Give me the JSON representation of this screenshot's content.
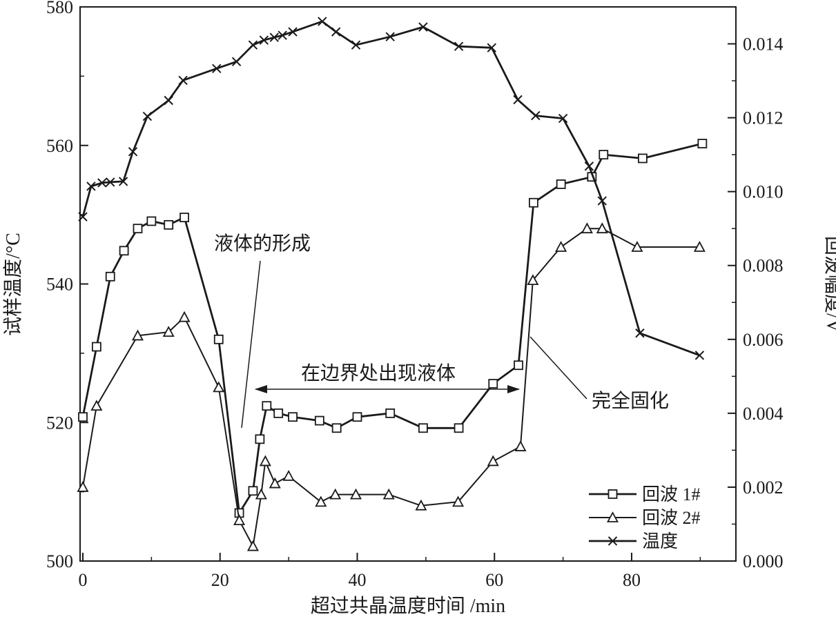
{
  "chart_data": {
    "type": "line",
    "xlabel": "超过共晶温度时间 /min",
    "ylabel_left": "试样温度/°C",
    "ylabel_right": "回波幅度/V",
    "xlim": [
      0,
      94
    ],
    "ylim_left": [
      500,
      580
    ],
    "ylim_right": [
      0,
      0.015
    ],
    "xticks": [
      "0",
      "20",
      "40",
      "60",
      "80"
    ],
    "yticks_left": [
      "500",
      "520",
      "540",
      "560",
      "580"
    ],
    "yticks_right": [
      "0.000",
      "0.002",
      "0.004",
      "0.006",
      "0.008",
      "0.010",
      "0.012",
      "0.014"
    ],
    "grid": false,
    "legend_position": "bottom-right",
    "series": [
      {
        "name": "回波 1#",
        "axis": "right",
        "marker": "square",
        "x": [
          0,
          2,
          4,
          6,
          8,
          10,
          12.5,
          14.8,
          19.8,
          22.8,
          24.8,
          25.8,
          26.8,
          28.5,
          30.6,
          34.5,
          37,
          40,
          44.8,
          49.6,
          54.8,
          59.8,
          63.5,
          65.7,
          69.7,
          74.2,
          75.9,
          81.6,
          90.3
        ],
        "y": [
          0.0039,
          0.0058,
          0.0077,
          0.0084,
          0.009,
          0.0092,
          0.0091,
          0.0093,
          0.006,
          0.0013,
          0.0019,
          0.0033,
          0.0042,
          0.004,
          0.0039,
          0.0038,
          0.0036,
          0.0039,
          0.004,
          0.0036,
          0.0036,
          0.0048,
          0.0053,
          0.0097,
          0.0102,
          0.0104,
          0.011,
          0.0109,
          0.0113
        ]
      },
      {
        "name": "回波 2#",
        "axis": "right",
        "marker": "triangle",
        "x": [
          0,
          2,
          8,
          12.5,
          14.8,
          19.8,
          22.8,
          24.8,
          26,
          26.6,
          28,
          30,
          34.7,
          36.8,
          39.8,
          44.6,
          49.3,
          54.7,
          59.8,
          63.8,
          65.6,
          69.7,
          73.5,
          75.7,
          80.8,
          89.9
        ],
        "y": [
          0.002,
          0.0042,
          0.0061,
          0.0062,
          0.0066,
          0.0047,
          0.0011,
          0.0004,
          0.0018,
          0.0027,
          0.0021,
          0.0023,
          0.0016,
          0.0018,
          0.0018,
          0.0018,
          0.0015,
          0.0016,
          0.0027,
          0.0031,
          0.0076,
          0.0085,
          0.009,
          0.009,
          0.0085,
          0.0085
        ]
      },
      {
        "name": "温度",
        "axis": "left",
        "marker": "x",
        "x": [
          0,
          1.2,
          2.8,
          4,
          5.9,
          7.3,
          9.4,
          12.5,
          14.6,
          19.5,
          22.4,
          24.8,
          26.4,
          27.9,
          29.1,
          30.6,
          34.9,
          36.9,
          39.8,
          44.8,
          49.6,
          54.8,
          59.6,
          63.4,
          66,
          70,
          73.8,
          75.7,
          81.2,
          89.9
        ],
        "y": [
          549.7,
          554.1,
          554.6,
          554.7,
          554.8,
          559.1,
          564.2,
          566.5,
          569.4,
          571.1,
          572.1,
          574.5,
          575.2,
          575.6,
          575.9,
          576.4,
          577.9,
          576.4,
          574.5,
          575.7,
          577.1,
          574.3,
          574.1,
          566.6,
          564.3,
          563.9,
          557,
          552,
          532.9,
          529.7
        ]
      }
    ],
    "annotations": [
      {
        "text": "液体的形成",
        "type": "leader"
      },
      {
        "text": "在边界处出现液体",
        "type": "double-arrow"
      },
      {
        "text": "完全固化",
        "type": "leader"
      }
    ]
  }
}
